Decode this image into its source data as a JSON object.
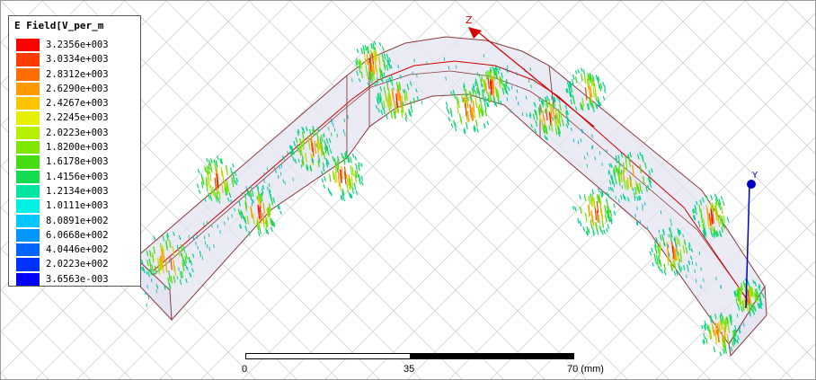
{
  "legend": {
    "title": "E Field[V_per_m",
    "entries": [
      {
        "value": "3.2356e+003",
        "color": "#ff0000"
      },
      {
        "value": "3.0334e+003",
        "color": "#ff3c00"
      },
      {
        "value": "2.8312e+003",
        "color": "#ff6e00"
      },
      {
        "value": "2.6290e+003",
        "color": "#ff9900"
      },
      {
        "value": "2.4267e+003",
        "color": "#ffc400"
      },
      {
        "value": "2.2245e+003",
        "color": "#e6f000"
      },
      {
        "value": "2.0223e+003",
        "color": "#b4f000"
      },
      {
        "value": "1.8200e+003",
        "color": "#7fe600"
      },
      {
        "value": "1.6178e+003",
        "color": "#46dc14"
      },
      {
        "value": "1.4156e+003",
        "color": "#14dc50"
      },
      {
        "value": "1.2134e+003",
        "color": "#00e6a0"
      },
      {
        "value": "1.0111e+003",
        "color": "#00f0e6"
      },
      {
        "value": "8.0891e+002",
        "color": "#00c8ff"
      },
      {
        "value": "6.0668e+002",
        "color": "#0096ff"
      },
      {
        "value": "4.0446e+002",
        "color": "#0064ff"
      },
      {
        "value": "2.0223e+002",
        "color": "#0032ff"
      },
      {
        "value": "3.6563e-003",
        "color": "#0000ff"
      }
    ]
  },
  "axes": {
    "z_label": "Z",
    "y_label": "Y",
    "z_color": "#d40000",
    "y_color": "#0000c8"
  },
  "scale": {
    "ticks": [
      "0",
      "35",
      "70 (mm)"
    ]
  },
  "colors": {
    "waveguide_fill": "#e4e4f2",
    "waveguide_edge": "#8a3a3a",
    "centerline": "#cc0000",
    "grid": "#d2d2d2"
  }
}
